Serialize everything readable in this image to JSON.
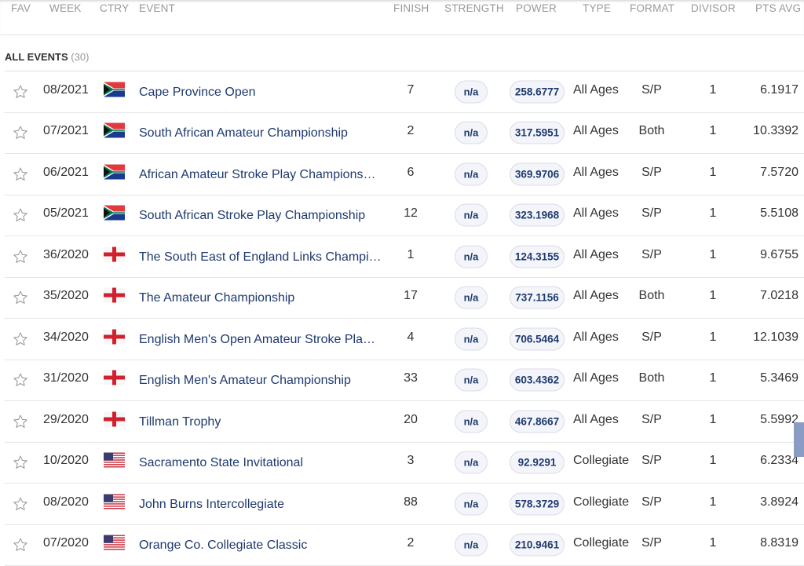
{
  "header": {
    "fav": "FAV",
    "week": "WEEK",
    "ctry": "CTRY",
    "event": "EVENT",
    "finish": "FINISH",
    "strength": "STRENGTH",
    "power": "POWER",
    "type": "TYPE",
    "format": "FORMAT",
    "divisor": "DIVISOR",
    "pts_avg": "PTS AVG"
  },
  "section": {
    "title": "ALL EVENTS",
    "count": "(30)"
  },
  "colors": {
    "link": "#1f3a6e",
    "scrollbar": "#8a9bc4"
  },
  "events": [
    {
      "week": "08/2021",
      "country": "south-africa",
      "event": "Cape Province Open",
      "finish": "7",
      "strength": "n/a",
      "power": "258.6777",
      "type": "All Ages",
      "format": "S/P",
      "divisor": "1",
      "pts_avg": "6.1917"
    },
    {
      "week": "07/2021",
      "country": "south-africa",
      "event": "South African Amateur Championship",
      "finish": "2",
      "strength": "n/a",
      "power": "317.5951",
      "type": "All Ages",
      "format": "Both",
      "divisor": "1",
      "pts_avg": "10.3392"
    },
    {
      "week": "06/2021",
      "country": "south-africa",
      "event": "African Amateur Stroke Play Champions…",
      "finish": "6",
      "strength": "n/a",
      "power": "369.9706",
      "type": "All Ages",
      "format": "S/P",
      "divisor": "1",
      "pts_avg": "7.5720"
    },
    {
      "week": "05/2021",
      "country": "south-africa",
      "event": "South African Stroke Play Championship",
      "finish": "12",
      "strength": "n/a",
      "power": "323.1968",
      "type": "All Ages",
      "format": "S/P",
      "divisor": "1",
      "pts_avg": "5.5108"
    },
    {
      "week": "36/2020",
      "country": "england",
      "event": "The South East of England Links Champi…",
      "finish": "1",
      "strength": "n/a",
      "power": "124.3155",
      "type": "All Ages",
      "format": "S/P",
      "divisor": "1",
      "pts_avg": "9.6755"
    },
    {
      "week": "35/2020",
      "country": "england",
      "event": "The Amateur Championship",
      "finish": "17",
      "strength": "n/a",
      "power": "737.1156",
      "type": "All Ages",
      "format": "Both",
      "divisor": "1",
      "pts_avg": "7.0218"
    },
    {
      "week": "34/2020",
      "country": "england",
      "event": "English Men's Open Amateur Stroke Pla…",
      "finish": "4",
      "strength": "n/a",
      "power": "706.5464",
      "type": "All Ages",
      "format": "S/P",
      "divisor": "1",
      "pts_avg": "12.1039"
    },
    {
      "week": "31/2020",
      "country": "england",
      "event": "English Men's Amateur Championship",
      "finish": "33",
      "strength": "n/a",
      "power": "603.4362",
      "type": "All Ages",
      "format": "Both",
      "divisor": "1",
      "pts_avg": "5.3469"
    },
    {
      "week": "29/2020",
      "country": "england",
      "event": "Tillman Trophy",
      "finish": "20",
      "strength": "n/a",
      "power": "467.8667",
      "type": "All Ages",
      "format": "S/P",
      "divisor": "1",
      "pts_avg": "5.5992"
    },
    {
      "week": "10/2020",
      "country": "usa",
      "event": "Sacramento State Invitational",
      "finish": "3",
      "strength": "n/a",
      "power": "92.9291",
      "type": "Collegiate",
      "format": "S/P",
      "divisor": "1",
      "pts_avg": "6.2334"
    },
    {
      "week": "08/2020",
      "country": "usa",
      "event": "John Burns Intercollegiate",
      "finish": "88",
      "strength": "n/a",
      "power": "578.3729",
      "type": "Collegiate",
      "format": "S/P",
      "divisor": "1",
      "pts_avg": "3.8924"
    },
    {
      "week": "07/2020",
      "country": "usa",
      "event": "Orange Co. Collegiate Classic",
      "finish": "2",
      "strength": "n/a",
      "power": "210.9461",
      "type": "Collegiate",
      "format": "S/P",
      "divisor": "1",
      "pts_avg": "8.8319"
    }
  ]
}
